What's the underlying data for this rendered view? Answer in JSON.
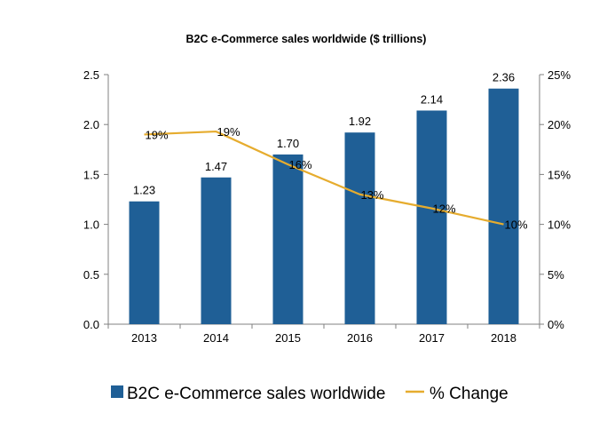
{
  "chart_data": {
    "type": "bar",
    "title": "B2C e-Commerce sales worldwide ($ trillions)",
    "categories": [
      "2013",
      "2014",
      "2015",
      "2016",
      "2017",
      "2018"
    ],
    "series": [
      {
        "name": "B2C e-Commerce sales worldwide",
        "type": "bar",
        "axis": "left",
        "color": "#1f5f96",
        "values": [
          1.23,
          1.47,
          1.7,
          1.92,
          2.14,
          2.36
        ],
        "labels": [
          "1.23",
          "1.47",
          "1.70",
          "1.92",
          "2.14",
          "2.36"
        ]
      },
      {
        "name": "% Change",
        "type": "line",
        "axis": "right",
        "color": "#e6ac2e",
        "values": [
          19,
          19.3,
          16,
          13,
          11.6,
          10
        ],
        "labels": [
          "19%",
          "19%",
          "16%",
          "13%",
          "12%",
          "10%"
        ]
      }
    ],
    "y_left": {
      "ylim": [
        0,
        2.5
      ],
      "ticks": [
        "0.0",
        "0.5",
        "1.0",
        "1.5",
        "2.0",
        "2.5"
      ]
    },
    "y_right": {
      "ylim": [
        0,
        25
      ],
      "ticks": [
        "0%",
        "5%",
        "10%",
        "15%",
        "20%",
        "25%"
      ]
    },
    "xlabel": "",
    "ylabel": "",
    "grid": false,
    "legend_position": "bottom"
  }
}
